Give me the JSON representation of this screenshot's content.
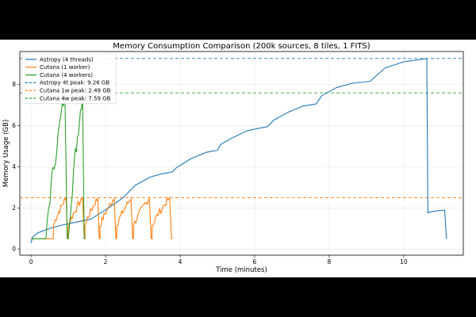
{
  "chart_data": {
    "type": "line",
    "title": "Memory Consumption Comparison (200k sources, 8 tiles, 1 FITS)",
    "xlabel": "Time (minutes)",
    "ylabel": "Memory Usage (GB)",
    "xlim": [
      -0.3,
      11.6
    ],
    "ylim": [
      -0.3,
      9.6
    ],
    "xticks": [
      0,
      2,
      4,
      6,
      8,
      10
    ],
    "yticks": [
      0,
      2,
      4,
      6,
      8
    ],
    "grid": true,
    "legend_position": "top-left",
    "series": [
      {
        "name": "Astropy (4 threads)",
        "color": "#1f77b4",
        "style": "solid",
        "x": [
          0,
          0.05,
          0.2,
          0.5,
          0.8,
          1.2,
          1.6,
          2.0,
          2.4,
          2.5,
          2.8,
          3.2,
          3.5,
          3.8,
          3.9,
          4.3,
          4.7,
          5.0,
          5.1,
          5.4,
          5.8,
          6.2,
          6.35,
          6.5,
          6.9,
          7.3,
          7.65,
          7.8,
          8.2,
          8.6,
          9.1,
          9.25,
          9.5,
          10.0,
          10.5,
          10.62,
          10.65,
          10.7,
          11.1,
          11.15
        ],
        "y": [
          0.3,
          0.6,
          0.8,
          1.0,
          1.15,
          1.3,
          1.45,
          1.9,
          2.4,
          2.55,
          3.1,
          3.5,
          3.65,
          3.75,
          3.95,
          4.4,
          4.7,
          4.8,
          5.1,
          5.4,
          5.75,
          5.9,
          5.95,
          6.25,
          6.65,
          6.95,
          7.05,
          7.45,
          7.85,
          8.05,
          8.15,
          8.4,
          8.8,
          9.1,
          9.22,
          9.26,
          1.75,
          1.8,
          1.9,
          0.5
        ]
      },
      {
        "name": "Cutana (1 worker)",
        "color": "#ff7f0e",
        "style": "solid",
        "cycles": [
          {
            "start": 0.6,
            "end": 1.0
          },
          {
            "start": 1.0,
            "end": 1.45
          },
          {
            "start": 1.45,
            "end": 1.85
          },
          {
            "start": 1.85,
            "end": 2.3
          },
          {
            "start": 2.3,
            "end": 2.75
          },
          {
            "start": 2.75,
            "end": 3.25
          },
          {
            "start": 3.25,
            "end": 3.8
          }
        ],
        "base_low": 0.5,
        "peak_high": 2.49
      },
      {
        "name": "Cutana (4 workers)",
        "color": "#2ca02c",
        "style": "solid",
        "cycles": [
          {
            "start": 0.4,
            "end": 1.0,
            "peak": 7.59
          },
          {
            "start": 1.0,
            "end": 1.45,
            "peak": 7.6
          }
        ],
        "base_low": 0.5
      },
      {
        "name": "Astropy 4t peak: 9.26 GB",
        "color": "#1f77b4",
        "style": "dashed",
        "y": 9.26
      },
      {
        "name": "Cutana 1w peak: 2.49 GB",
        "color": "#ff7f0e",
        "style": "dashed",
        "y": 2.49
      },
      {
        "name": "Cutana 4w peak: 7.59 GB",
        "color": "#2ca02c",
        "style": "dashed",
        "y": 7.59
      }
    ]
  }
}
